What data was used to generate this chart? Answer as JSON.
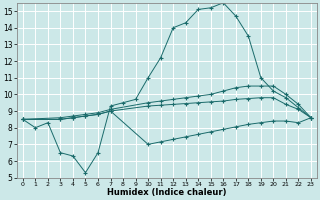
{
  "xlabel": "Humidex (Indice chaleur)",
  "background_color": "#cce8e8",
  "grid_color": "#ffffff",
  "line_color": "#1a6b6b",
  "xlim": [
    -0.5,
    23.5
  ],
  "ylim": [
    5,
    15.5
  ],
  "xticks": [
    0,
    1,
    2,
    3,
    4,
    5,
    6,
    7,
    8,
    9,
    10,
    11,
    12,
    13,
    14,
    15,
    16,
    17,
    18,
    19,
    20,
    21,
    22,
    23
  ],
  "yticks": [
    5,
    6,
    7,
    8,
    9,
    10,
    11,
    12,
    13,
    14,
    15
  ],
  "line1_x": [
    0,
    1,
    2,
    3,
    4,
    5,
    6,
    7,
    8,
    9,
    10,
    11,
    12,
    13,
    14,
    15,
    16,
    17,
    18,
    19,
    20,
    21,
    22,
    23
  ],
  "line1_y": [
    8.5,
    8.0,
    8.3,
    6.5,
    6.3,
    5.3,
    6.5,
    9.3,
    9.5,
    9.7,
    11.0,
    12.2,
    14.0,
    14.3,
    15.1,
    15.2,
    15.5,
    14.7,
    13.5,
    11.0,
    10.2,
    9.8,
    9.2,
    8.6
  ],
  "line2_x": [
    0,
    3,
    4,
    5,
    6,
    7,
    10,
    11,
    12,
    13,
    14,
    15,
    16,
    17,
    18,
    19,
    20,
    21,
    22,
    23
  ],
  "line2_y": [
    8.5,
    8.6,
    8.7,
    8.8,
    8.9,
    9.1,
    9.5,
    9.6,
    9.7,
    9.8,
    9.9,
    10.0,
    10.2,
    10.4,
    10.5,
    10.5,
    10.5,
    10.0,
    9.4,
    8.6
  ],
  "line3_x": [
    0,
    3,
    4,
    5,
    6,
    7,
    10,
    11,
    12,
    13,
    14,
    15,
    16,
    17,
    18,
    19,
    20,
    21,
    22,
    23
  ],
  "line3_y": [
    8.5,
    8.5,
    8.6,
    8.7,
    8.8,
    9.0,
    9.3,
    9.35,
    9.4,
    9.45,
    9.5,
    9.55,
    9.6,
    9.7,
    9.75,
    9.8,
    9.8,
    9.4,
    9.1,
    8.6
  ],
  "line4_x": [
    0,
    3,
    4,
    5,
    6,
    7,
    10,
    11,
    12,
    13,
    14,
    15,
    16,
    17,
    18,
    19,
    20,
    21,
    22,
    23
  ],
  "line4_y": [
    8.5,
    8.5,
    8.6,
    8.7,
    8.8,
    9.0,
    7.0,
    7.15,
    7.3,
    7.45,
    7.6,
    7.75,
    7.9,
    8.05,
    8.2,
    8.3,
    8.4,
    8.4,
    8.3,
    8.6
  ]
}
